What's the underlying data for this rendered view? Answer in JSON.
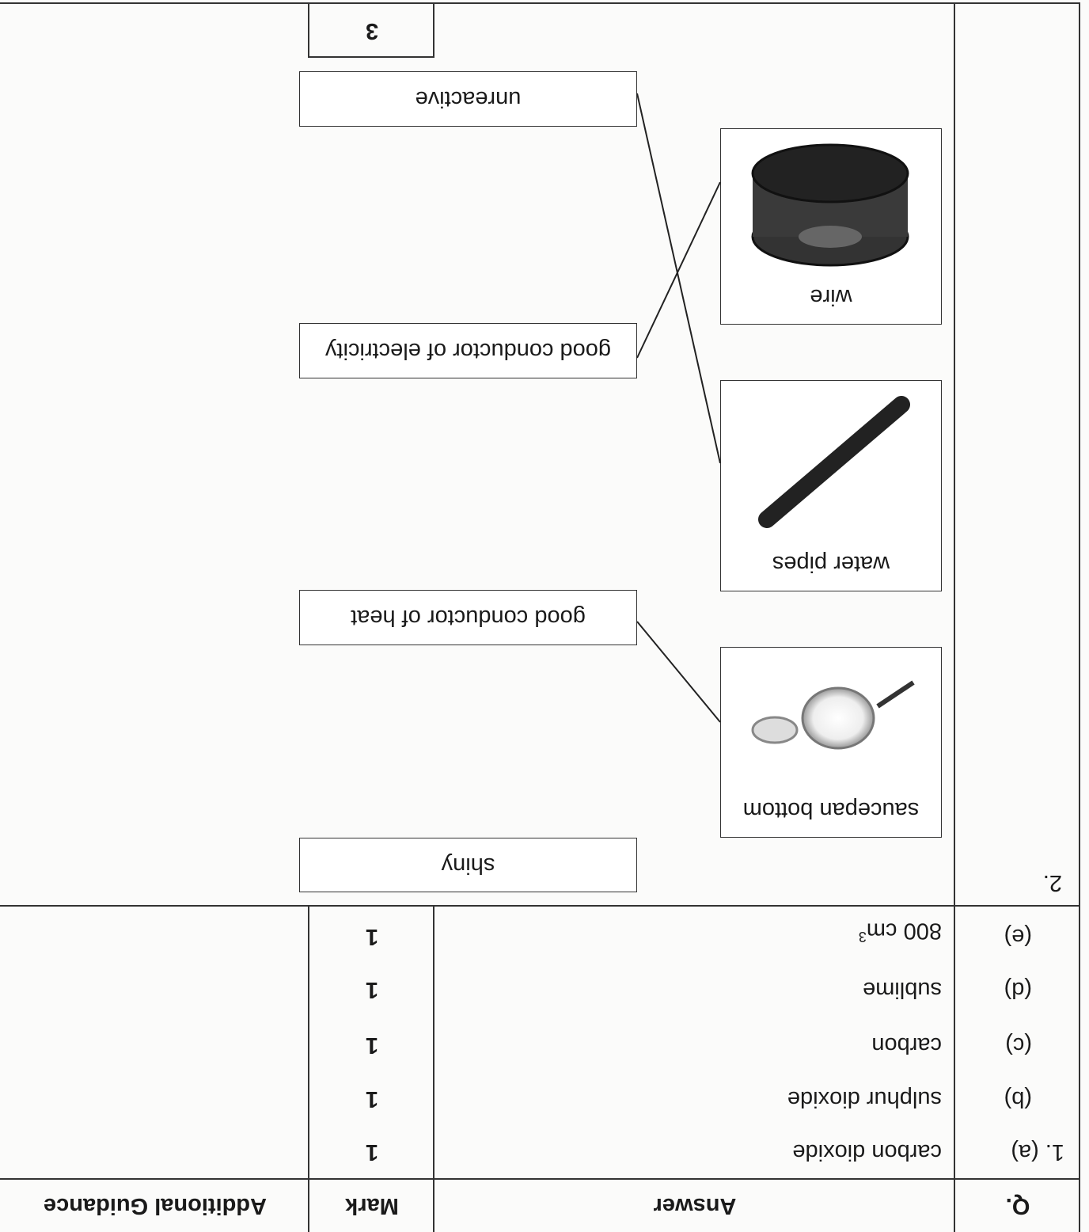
{
  "table": {
    "header": [
      "Q.",
      "Answer",
      "Mark",
      "Additional Guidance"
    ],
    "rows": [
      [
        "1. (a)",
        "carbon dioxide",
        "1"
      ],
      [
        "(b)",
        "sulphur dioxide",
        "1"
      ],
      [
        "(c)",
        "carbon",
        "1"
      ],
      [
        "(d)",
        "sublime",
        "1"
      ],
      [
        "(e)",
        {
          "text": "800 cm",
          "sup": "3"
        },
        "1"
      ]
    ]
  },
  "question2": {
    "number": "2.",
    "items": [
      "saucepan bottom",
      "water pipes",
      "wire"
    ],
    "properties": [
      "shiny",
      "good conductor of heat",
      "good conductor of electricity",
      "unreactive"
    ],
    "mark": "3"
  }
}
